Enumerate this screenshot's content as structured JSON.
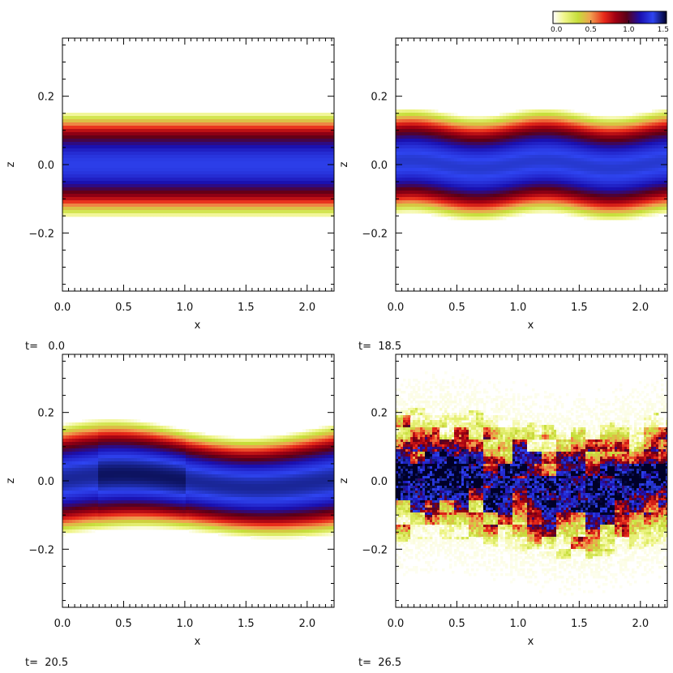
{
  "chart_data": {
    "type": "heatmap",
    "colorbar": {
      "ticks": [
        0.0,
        0.5,
        1.0,
        1.5
      ],
      "tick_labels": [
        "0.0",
        "0.5",
        "1.0",
        "1.5"
      ],
      "range": [
        0,
        1.5
      ],
      "colors": [
        "#ffffff",
        "#f0f58a",
        "#c6de3a",
        "#f0a050",
        "#e82a1a",
        "#a00012",
        "#5a0018",
        "#1a10b0",
        "#2e44f0",
        "#000028"
      ]
    },
    "panels": [
      {
        "time_label": "t=   0.0",
        "xlabel": "x",
        "ylabel": "z",
        "xlim": [
          0,
          2.22
        ],
        "ylim": [
          -0.37,
          0.37
        ],
        "x_ticks": [
          0.0,
          0.5,
          1.0,
          1.5,
          2.0
        ],
        "x_tick_labels": [
          "0.0",
          "0.5",
          "1.0",
          "1.5",
          "2.0"
        ],
        "y_ticks": [
          -0.2,
          0.0,
          0.2
        ],
        "y_tick_labels": [
          "−0.2",
          "0.0",
          "0.2"
        ],
        "layer": {
          "half_width": 0.1,
          "peak": 1.3,
          "perturbation": 0.0,
          "turbulence": 0.0
        }
      },
      {
        "time_label": "t=  18.5",
        "xlabel": "x",
        "ylabel": "z",
        "xlim": [
          0,
          2.22
        ],
        "ylim": [
          -0.37,
          0.37
        ],
        "x_ticks": [
          0.0,
          0.5,
          1.0,
          1.5,
          2.0
        ],
        "x_tick_labels": [
          "0.0",
          "0.5",
          "1.0",
          "1.5",
          "2.0"
        ],
        "y_ticks": [
          -0.2,
          0.0,
          0.2
        ],
        "y_tick_labels": [
          "−0.2",
          "0.0",
          "0.2"
        ],
        "layer": {
          "half_width": 0.1,
          "peak": 1.35,
          "perturbation": 0.012,
          "turbulence": 0.0
        }
      },
      {
        "time_label": "t=  20.5",
        "xlabel": "x",
        "ylabel": "z",
        "xlim": [
          0,
          2.22
        ],
        "ylim": [
          -0.37,
          0.37
        ],
        "x_ticks": [
          0.0,
          0.5,
          1.0,
          1.5,
          2.0
        ],
        "x_tick_labels": [
          "0.0",
          "0.5",
          "1.0",
          "1.5",
          "2.0"
        ],
        "y_ticks": [
          -0.2,
          0.0,
          0.2
        ],
        "y_tick_labels": [
          "−0.2",
          "0.0",
          "0.2"
        ],
        "layer": {
          "half_width": 0.1,
          "peak": 1.4,
          "perturbation": 0.02,
          "turbulence": 0.0
        }
      },
      {
        "time_label": "t=  26.5",
        "xlabel": "x",
        "ylabel": "z",
        "xlim": [
          0,
          2.22
        ],
        "ylim": [
          -0.37,
          0.37
        ],
        "x_ticks": [
          0.0,
          0.5,
          1.0,
          1.5,
          2.0
        ],
        "x_tick_labels": [
          "0.0",
          "0.5",
          "1.0",
          "1.5",
          "2.0"
        ],
        "y_ticks": [
          -0.2,
          0.0,
          0.2
        ],
        "y_tick_labels": [
          "−0.2",
          "0.0",
          "0.2"
        ],
        "layer": {
          "half_width": 0.12,
          "peak": 1.5,
          "perturbation": 0.03,
          "turbulence": 1.0
        }
      }
    ]
  }
}
